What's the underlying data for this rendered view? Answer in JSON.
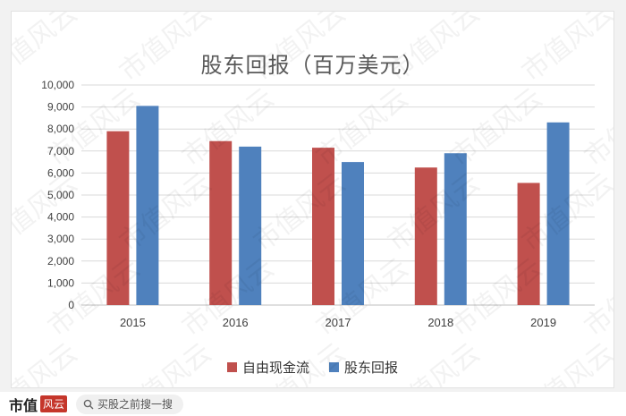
{
  "colors": {
    "series1": "#c0504d",
    "series2": "#4f81bd",
    "grid": "#d9d9d9"
  },
  "watermark": "市值风云",
  "footer": {
    "brand": "市值",
    "brand_stamp": "风云",
    "search_placeholder": "买股之前搜一搜"
  },
  "chart_data": {
    "type": "bar",
    "title": "股东回报（百万美元）",
    "categories": [
      "2015",
      "2016",
      "2017",
      "2018",
      "2019"
    ],
    "series": [
      {
        "name": "自由现金流",
        "values": [
          7900,
          7450,
          7150,
          6250,
          5550
        ]
      },
      {
        "name": "股东回报",
        "values": [
          9050,
          7200,
          6500,
          6900,
          8300
        ]
      }
    ],
    "ylim": [
      0,
      10000
    ],
    "yticks": [
      "0",
      "1,000",
      "2,000",
      "3,000",
      "4,000",
      "5,000",
      "6,000",
      "7,000",
      "8,000",
      "9,000",
      "10,000"
    ],
    "grid": true,
    "legend": "bottom"
  }
}
